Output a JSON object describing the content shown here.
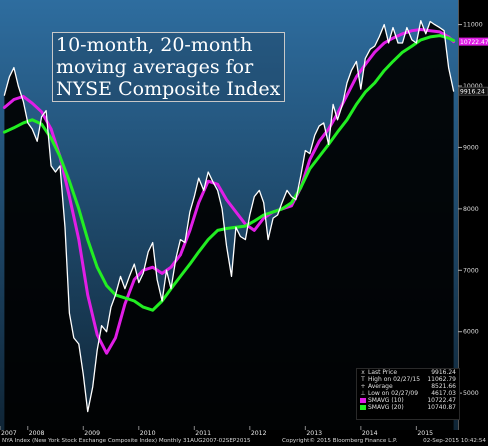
{
  "title_lines": [
    "10-month, 20-month",
    "moving averages for",
    "NYSE Composite Index"
  ],
  "colors": {
    "background_top": "#2e6d9f",
    "background_bottom": "#0f2536",
    "price": "#ffffff",
    "sma10": "#e01ee6",
    "sma20": "#22ee22",
    "text": "#e0e0e0"
  },
  "legend": {
    "rows": [
      {
        "label": "Last Price",
        "value": "9916.24",
        "symbol": "x"
      },
      {
        "label": "High on 02/27/15",
        "value": "11062.79",
        "symbol": "T"
      },
      {
        "label": "Average",
        "value": "8521.66",
        "symbol": "+"
      },
      {
        "label": "Low on 02/27/09",
        "value": "4617.03",
        "symbol": "⊥"
      },
      {
        "label": "SMAVG (10)",
        "value": "10722.47",
        "swatch": "#e01ee6"
      },
      {
        "label": "SMAVG (20)",
        "value": "10740.87",
        "swatch": "#22ee22"
      }
    ]
  },
  "footer": {
    "left": "NYA Index (New York Stock Exchange Composite Index)  Monthly 31AUG2007-02SEP2015",
    "center": "Copyright© 2015 Bloomberg Finance L.P.",
    "right": "02-Sep-2015 10:42:54"
  },
  "chart_data": {
    "type": "line",
    "x_ticks": [
      "2007",
      "2008",
      "2009",
      "2010",
      "2011",
      "2012",
      "2013",
      "2014",
      "2015"
    ],
    "y_ticks": [
      11000,
      10000,
      9000,
      8000,
      7000,
      6000,
      5000
    ],
    "ylim": [
      4400,
      11400
    ],
    "xlim": [
      2007.5,
      2015.75
    ],
    "grid": false,
    "legend_position": "bottom-right",
    "value_labels": [
      {
        "text": "10722.47",
        "value": 10722.47,
        "color": "#e01ee6"
      },
      {
        "text": "9916.24",
        "value": 9916.24,
        "color": "#ffffff"
      }
    ],
    "series": [
      {
        "name": "NYA Index",
        "color": "#ffffff",
        "points": [
          [
            2007.58,
            9850
          ],
          [
            2007.67,
            10150
          ],
          [
            2007.75,
            10300
          ],
          [
            2007.83,
            10000
          ],
          [
            2007.92,
            9750
          ],
          [
            2008.0,
            9400
          ],
          [
            2008.08,
            9300
          ],
          [
            2008.17,
            9100
          ],
          [
            2008.25,
            9500
          ],
          [
            2008.33,
            9600
          ],
          [
            2008.42,
            8700
          ],
          [
            2008.5,
            8600
          ],
          [
            2008.58,
            8700
          ],
          [
            2008.67,
            7700
          ],
          [
            2008.75,
            6300
          ],
          [
            2008.83,
            5900
          ],
          [
            2008.92,
            5800
          ],
          [
            2009.0,
            5300
          ],
          [
            2009.08,
            4700
          ],
          [
            2009.17,
            5100
          ],
          [
            2009.25,
            5700
          ],
          [
            2009.33,
            6100
          ],
          [
            2009.42,
            6000
          ],
          [
            2009.5,
            6400
          ],
          [
            2009.58,
            6600
          ],
          [
            2009.67,
            6900
          ],
          [
            2009.75,
            6700
          ],
          [
            2009.83,
            6900
          ],
          [
            2009.92,
            7100
          ],
          [
            2010.0,
            6800
          ],
          [
            2010.08,
            6950
          ],
          [
            2010.17,
            7300
          ],
          [
            2010.25,
            7450
          ],
          [
            2010.33,
            6850
          ],
          [
            2010.42,
            6500
          ],
          [
            2010.5,
            7000
          ],
          [
            2010.58,
            6700
          ],
          [
            2010.67,
            7200
          ],
          [
            2010.75,
            7500
          ],
          [
            2010.83,
            7450
          ],
          [
            2010.92,
            7950
          ],
          [
            2011.0,
            8200
          ],
          [
            2011.08,
            8500
          ],
          [
            2011.17,
            8300
          ],
          [
            2011.25,
            8600
          ],
          [
            2011.33,
            8450
          ],
          [
            2011.42,
            8300
          ],
          [
            2011.5,
            8000
          ],
          [
            2011.58,
            7400
          ],
          [
            2011.67,
            6900
          ],
          [
            2011.75,
            7700
          ],
          [
            2011.83,
            7550
          ],
          [
            2011.92,
            7500
          ],
          [
            2012.0,
            7900
          ],
          [
            2012.08,
            8200
          ],
          [
            2012.17,
            8300
          ],
          [
            2012.25,
            8100
          ],
          [
            2012.33,
            7500
          ],
          [
            2012.42,
            7850
          ],
          [
            2012.5,
            7900
          ],
          [
            2012.58,
            8100
          ],
          [
            2012.67,
            8300
          ],
          [
            2012.75,
            8200
          ],
          [
            2012.83,
            8150
          ],
          [
            2012.92,
            8550
          ],
          [
            2013.0,
            8950
          ],
          [
            2013.08,
            8900
          ],
          [
            2013.17,
            9200
          ],
          [
            2013.25,
            9350
          ],
          [
            2013.33,
            9400
          ],
          [
            2013.42,
            9050
          ],
          [
            2013.5,
            9700
          ],
          [
            2013.58,
            9450
          ],
          [
            2013.67,
            9700
          ],
          [
            2013.75,
            10050
          ],
          [
            2013.83,
            10250
          ],
          [
            2013.92,
            10400
          ],
          [
            2014.0,
            9950
          ],
          [
            2014.08,
            10450
          ],
          [
            2014.17,
            10600
          ],
          [
            2014.25,
            10650
          ],
          [
            2014.33,
            10800
          ],
          [
            2014.42,
            11000
          ],
          [
            2014.5,
            10700
          ],
          [
            2014.58,
            10950
          ],
          [
            2014.67,
            10700
          ],
          [
            2014.75,
            10700
          ],
          [
            2014.83,
            10950
          ],
          [
            2014.92,
            10750
          ],
          [
            2015.0,
            10700
          ],
          [
            2015.08,
            11062.79
          ],
          [
            2015.17,
            10850
          ],
          [
            2015.25,
            11050
          ],
          [
            2015.33,
            11000
          ],
          [
            2015.42,
            10950
          ],
          [
            2015.5,
            10900
          ],
          [
            2015.58,
            10300
          ],
          [
            2015.67,
            9916.24
          ]
        ]
      },
      {
        "name": "SMAVG (10)",
        "color": "#e01ee6",
        "points": [
          [
            2007.58,
            9650
          ],
          [
            2007.75,
            9780
          ],
          [
            2007.92,
            9830
          ],
          [
            2008.08,
            9720
          ],
          [
            2008.25,
            9580
          ],
          [
            2008.42,
            9300
          ],
          [
            2008.58,
            8850
          ],
          [
            2008.75,
            8200
          ],
          [
            2008.92,
            7500
          ],
          [
            2009.08,
            6600
          ],
          [
            2009.25,
            5950
          ],
          [
            2009.42,
            5650
          ],
          [
            2009.58,
            5900
          ],
          [
            2009.75,
            6450
          ],
          [
            2009.92,
            6850
          ],
          [
            2010.08,
            7000
          ],
          [
            2010.25,
            7050
          ],
          [
            2010.42,
            6950
          ],
          [
            2010.58,
            7050
          ],
          [
            2010.75,
            7250
          ],
          [
            2010.92,
            7650
          ],
          [
            2011.08,
            8100
          ],
          [
            2011.25,
            8450
          ],
          [
            2011.42,
            8400
          ],
          [
            2011.58,
            8150
          ],
          [
            2011.75,
            7950
          ],
          [
            2011.92,
            7750
          ],
          [
            2012.08,
            7650
          ],
          [
            2012.25,
            7850
          ],
          [
            2012.42,
            7950
          ],
          [
            2012.58,
            8000
          ],
          [
            2012.75,
            8050
          ],
          [
            2012.92,
            8350
          ],
          [
            2013.08,
            8800
          ],
          [
            2013.25,
            9100
          ],
          [
            2013.42,
            9300
          ],
          [
            2013.58,
            9550
          ],
          [
            2013.75,
            9850
          ],
          [
            2013.92,
            10150
          ],
          [
            2014.08,
            10350
          ],
          [
            2014.25,
            10550
          ],
          [
            2014.42,
            10700
          ],
          [
            2014.58,
            10780
          ],
          [
            2014.75,
            10850
          ],
          [
            2014.92,
            10900
          ],
          [
            2015.08,
            10920
          ],
          [
            2015.25,
            10900
          ],
          [
            2015.42,
            10880
          ],
          [
            2015.58,
            10800
          ],
          [
            2015.67,
            10722.47
          ]
        ]
      },
      {
        "name": "SMAVG (20)",
        "color": "#22ee22",
        "points": [
          [
            2007.58,
            9250
          ],
          [
            2007.75,
            9320
          ],
          [
            2007.92,
            9400
          ],
          [
            2008.08,
            9450
          ],
          [
            2008.25,
            9380
          ],
          [
            2008.42,
            9150
          ],
          [
            2008.58,
            8850
          ],
          [
            2008.75,
            8450
          ],
          [
            2008.92,
            8000
          ],
          [
            2009.08,
            7500
          ],
          [
            2009.25,
            7050
          ],
          [
            2009.42,
            6750
          ],
          [
            2009.58,
            6600
          ],
          [
            2009.75,
            6550
          ],
          [
            2009.92,
            6500
          ],
          [
            2010.08,
            6400
          ],
          [
            2010.25,
            6350
          ],
          [
            2010.42,
            6500
          ],
          [
            2010.58,
            6700
          ],
          [
            2010.75,
            6900
          ],
          [
            2010.92,
            7100
          ],
          [
            2011.08,
            7300
          ],
          [
            2011.25,
            7500
          ],
          [
            2011.42,
            7650
          ],
          [
            2011.58,
            7680
          ],
          [
            2011.75,
            7700
          ],
          [
            2011.92,
            7720
          ],
          [
            2012.08,
            7800
          ],
          [
            2012.25,
            7900
          ],
          [
            2012.42,
            7950
          ],
          [
            2012.58,
            8000
          ],
          [
            2012.75,
            8100
          ],
          [
            2012.92,
            8350
          ],
          [
            2013.08,
            8650
          ],
          [
            2013.25,
            8850
          ],
          [
            2013.42,
            9050
          ],
          [
            2013.58,
            9250
          ],
          [
            2013.75,
            9450
          ],
          [
            2013.92,
            9700
          ],
          [
            2014.08,
            9900
          ],
          [
            2014.25,
            10050
          ],
          [
            2014.42,
            10250
          ],
          [
            2014.58,
            10400
          ],
          [
            2014.75,
            10550
          ],
          [
            2014.92,
            10650
          ],
          [
            2015.08,
            10750
          ],
          [
            2015.25,
            10800
          ],
          [
            2015.42,
            10820
          ],
          [
            2015.58,
            10780
          ],
          [
            2015.67,
            10740.87
          ]
        ]
      }
    ]
  }
}
